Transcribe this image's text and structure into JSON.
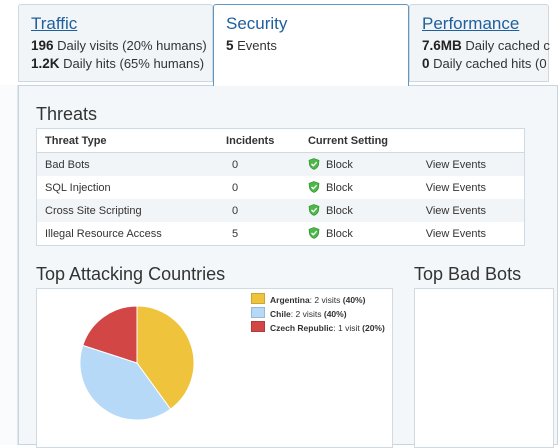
{
  "tabs": [
    {
      "title": "Traffic",
      "line1_value": "196",
      "line1_text": " Daily visits (20% humans)",
      "line2_value": "1.2K",
      "line2_text": " Daily hits (65% humans)"
    },
    {
      "title": "Security",
      "line1_value": "5",
      "line1_text": " Events"
    },
    {
      "title": "Performance",
      "line1_value": "7.6MB",
      "line1_text": " Daily cached c",
      "line2_value": "0",
      "line2_text": " Daily cached hits (0"
    }
  ],
  "threats": {
    "title": "Threats",
    "headers": [
      "Threat Type",
      "Incidents",
      "Current Setting"
    ],
    "rows": [
      {
        "type": "Bad Bots",
        "incidents": "0",
        "setting": "Block",
        "action": "View Events"
      },
      {
        "type": "SQL Injection",
        "incidents": "0",
        "setting": "Block",
        "action": "View Events"
      },
      {
        "type": "Cross Site Scripting",
        "incidents": "0",
        "setting": "Block",
        "action": "View Events"
      },
      {
        "type": "Illegal Resource Access",
        "incidents": "5",
        "setting": "Block",
        "action": "View Events"
      }
    ]
  },
  "countries": {
    "title": "Top Attacking Countries",
    "legend": [
      {
        "name": "Argentina",
        "visits": "2 visits",
        "pct": "(40%)"
      },
      {
        "name": "Chile",
        "visits": "2 visits",
        "pct": "(40%)"
      },
      {
        "name": "Czech Republic",
        "visits": "1 visit",
        "pct": "(20%)"
      }
    ]
  },
  "bots": {
    "title": "Top Bad Bots"
  },
  "chart_data": {
    "type": "pie",
    "categories": [
      "Argentina",
      "Chile",
      "Czech Republic"
    ],
    "values": [
      2,
      2,
      1
    ],
    "colors": [
      "#f0c33c",
      "#b6d9f7",
      "#d24646"
    ]
  }
}
